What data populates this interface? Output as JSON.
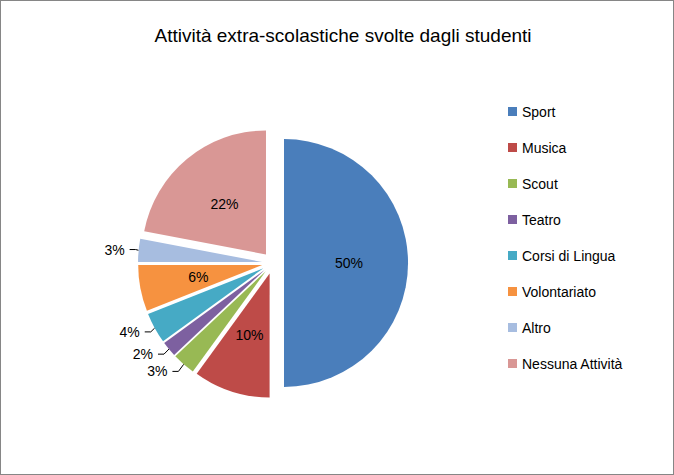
{
  "chart_data": {
    "type": "pie",
    "title": "Attività extra-scolastiche svolte dagli studenti",
    "categories": [
      "Sport",
      "Musica",
      "Scout",
      "Teatro",
      "Corsi di Lingua",
      "Volontariato",
      "Altro",
      "Nessuna Attività"
    ],
    "values": [
      50,
      10,
      3,
      2,
      4,
      6,
      3,
      22
    ],
    "value_labels": [
      "50%",
      "10%",
      "3%",
      "2%",
      "4%",
      "6%",
      "3%",
      "22%"
    ],
    "colors": [
      "#4a7ebb",
      "#be4b48",
      "#98b954",
      "#7d60a0",
      "#46aac5",
      "#f69240",
      "#a7bde0",
      "#d99795"
    ],
    "data_labels": true,
    "legend": "right"
  }
}
